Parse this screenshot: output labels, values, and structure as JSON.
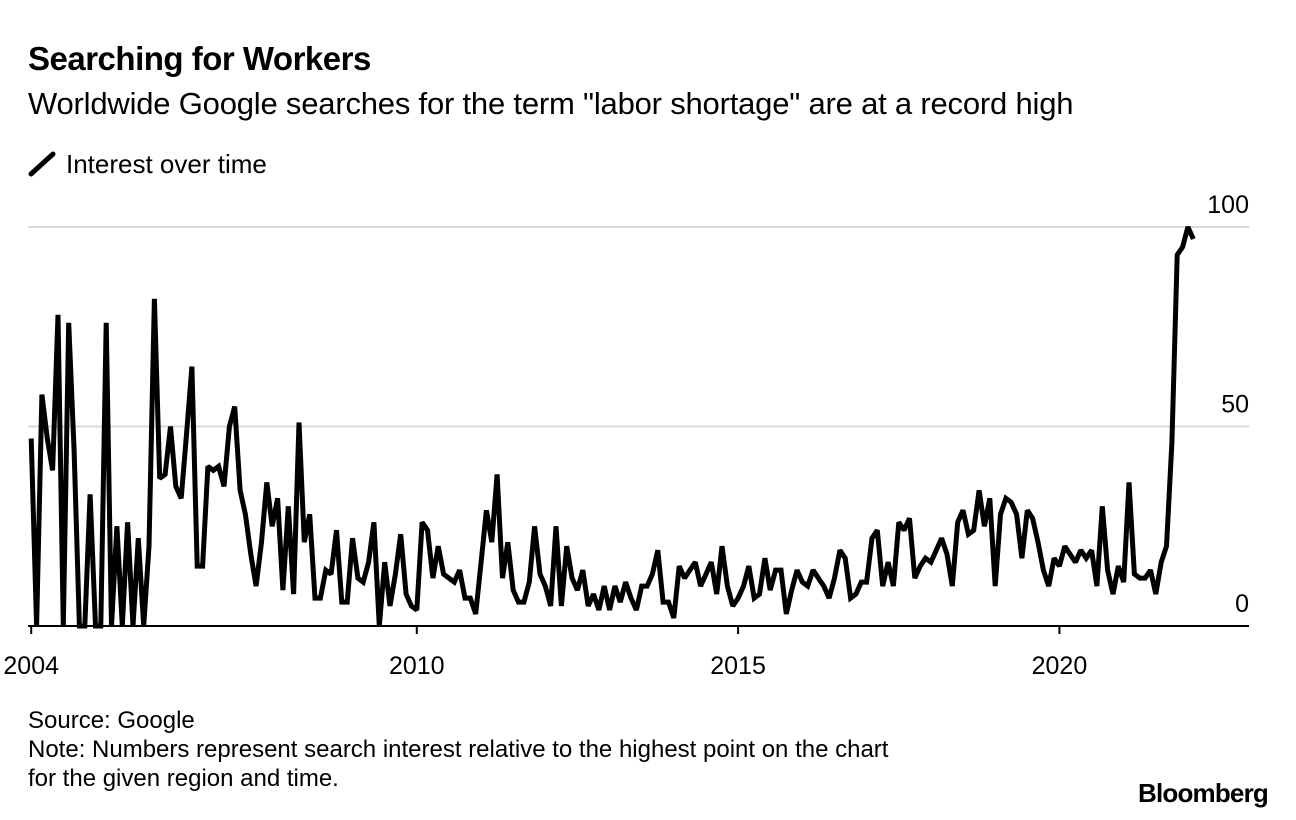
{
  "chart_data": {
    "type": "line",
    "title": "Searching for Workers",
    "subtitle": "Worldwide Google searches for the term \"labor shortage\" are at a record high",
    "legend": [
      {
        "label": "Interest over time",
        "color": "#000000"
      }
    ],
    "xlabel": "",
    "ylabel": "",
    "x_start": 2004.0,
    "x_step_months": 1,
    "xlim": [
      2003.95,
      2022.95
    ],
    "ylim": [
      0,
      100
    ],
    "y_ticks": [
      0,
      50,
      100
    ],
    "y_tick_labels": [
      "0",
      "50",
      "100"
    ],
    "x_ticks": [
      2004,
      2010,
      2015,
      2020
    ],
    "x_tick_labels": [
      "2004",
      "2010",
      "2015",
      "2020"
    ],
    "grid": true,
    "y_axis_position": "right",
    "series": [
      {
        "name": "Interest over time",
        "color": "#000000",
        "values": [
          47,
          0,
          58,
          47,
          39,
          78,
          0,
          76,
          44,
          0,
          0,
          33,
          0,
          0,
          76,
          0,
          25,
          0,
          26,
          0,
          22,
          0,
          20,
          82,
          37,
          38,
          50,
          35,
          32,
          48,
          65,
          15,
          15,
          40,
          39,
          40,
          35,
          50,
          55,
          34,
          28,
          18,
          10,
          21,
          36,
          25,
          32,
          9,
          30,
          8,
          51,
          21,
          28,
          7,
          7,
          14,
          13,
          24,
          6,
          6,
          22,
          12,
          11,
          16,
          26,
          0,
          16,
          5,
          13,
          23,
          8,
          5,
          4,
          26,
          24,
          12,
          20,
          13,
          12,
          11,
          14,
          7,
          7,
          3,
          16,
          29,
          21,
          38,
          12,
          21,
          9,
          6,
          6,
          11,
          25,
          13,
          10,
          5,
          25,
          5,
          20,
          12,
          9,
          14,
          5,
          8,
          4,
          10,
          4,
          10,
          6,
          11,
          7,
          4,
          10,
          10,
          13,
          19,
          6,
          6,
          2,
          15,
          12,
          14,
          16,
          10,
          13,
          16,
          8,
          20,
          10,
          5,
          7,
          10,
          15,
          7,
          8,
          17,
          9,
          14,
          14,
          3,
          9,
          14,
          11,
          10,
          14,
          12,
          10,
          7,
          12,
          19,
          17,
          7,
          8,
          11,
          11,
          22,
          24,
          10,
          16,
          10,
          26,
          24,
          27,
          12,
          15,
          17,
          16,
          19,
          22,
          18,
          10,
          26,
          29,
          23,
          24,
          34,
          25,
          32,
          10,
          28,
          32,
          31,
          28,
          17,
          29,
          27,
          21,
          14,
          10,
          17,
          15,
          20,
          18,
          16,
          19,
          17,
          19,
          10,
          30,
          14,
          8,
          15,
          11,
          36,
          13,
          12,
          12,
          14,
          8,
          16,
          20,
          46,
          93,
          95,
          100,
          97
        ]
      }
    ]
  },
  "footer": {
    "source": "Source: Google",
    "note_line1": "Note: Numbers represent search interest relative to the highest point on the chart",
    "note_line2": "for the given region and time."
  },
  "brand": "Bloomberg"
}
